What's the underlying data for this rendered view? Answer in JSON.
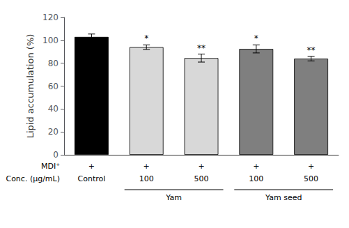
{
  "chart_data": {
    "type": "bar",
    "ylabel": "Lipid accumulation (%)",
    "categories": [
      "Control",
      "100",
      "500",
      "100",
      "500"
    ],
    "values": [
      103.0,
      94.0,
      84.5,
      92.5,
      84.0
    ],
    "errors": [
      2.5,
      2.0,
      3.5,
      3.5,
      2.0
    ],
    "colors": [
      "#000000",
      "#d8d8d8",
      "#d8d8d8",
      "#7f7f7f",
      "#7f7f7f"
    ],
    "significance": [
      null,
      "*",
      "**",
      "*",
      "**"
    ],
    "row_labels": [
      "MDI⁺",
      "Conc. (μg/mL)"
    ],
    "mdi_values": [
      "+",
      "+",
      "+",
      "+",
      "+"
    ],
    "groups": [
      {
        "label": "Yam",
        "from": 1,
        "to": 2
      },
      {
        "label": "Yam seed",
        "from": 3,
        "to": 4
      }
    ],
    "ylim": [
      0,
      120
    ],
    "yticks": [
      0,
      20,
      40,
      60,
      80,
      100,
      120
    ],
    "grid": false,
    "tick_labels": "y"
  }
}
